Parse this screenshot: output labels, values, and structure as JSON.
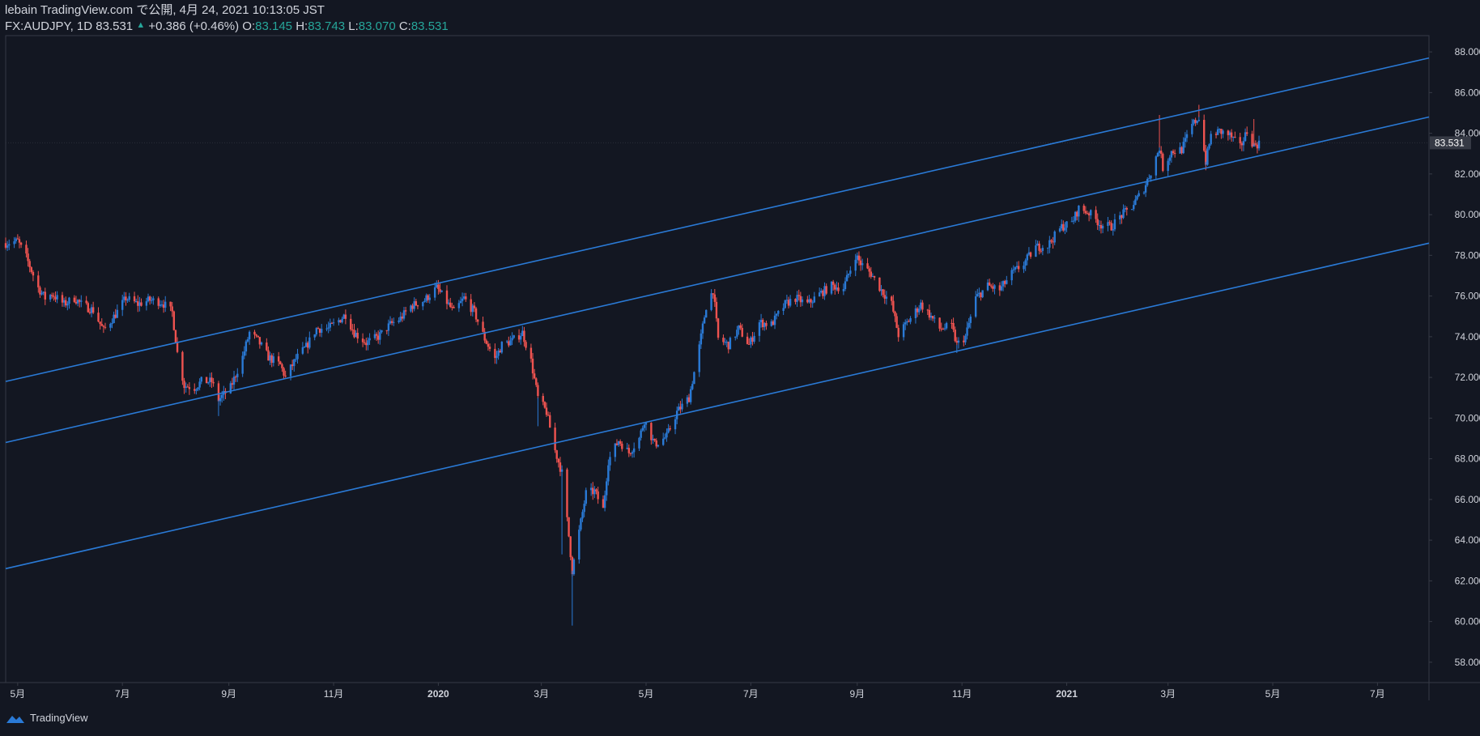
{
  "header": {
    "published": "lebain TradingView.com で公開, 4月 24, 2021 10:13:05 JST",
    "symbol": "FX:AUDJPY, 1D 83.531",
    "change": "+0.386 (+0.46%)",
    "o_label": "O:",
    "o": "83.145",
    "h_label": "H:",
    "h": "83.743",
    "l_label": "L:",
    "l": "83.070",
    "c_label": "C:",
    "c": "83.531"
  },
  "footer": {
    "brand": "TradingView",
    "icon": "tradingview-cloud-icon"
  },
  "colors": {
    "background": "#131722",
    "up": "#2a7ad6",
    "down": "#ef5350",
    "channel": "#2a7ad6",
    "axis_text": "#d1d4dc",
    "border": "#363a45",
    "price_label_bg": "#363a45",
    "ohlc_value": "#26a69a"
  },
  "chart_data": {
    "type": "candlestick",
    "symbol": "FX:AUDJPY",
    "timeframe": "1D",
    "x_range": [
      "2019-04-24",
      "2021-07-31"
    ],
    "ylim": [
      57,
      88.8
    ],
    "y_ticks": [
      58,
      60,
      62,
      64,
      66,
      68,
      70,
      72,
      74,
      76,
      78,
      80,
      82,
      84,
      86,
      88
    ],
    "y_tick_labels": [
      "58.000",
      "60.000",
      "62.000",
      "64.000",
      "66.000",
      "68.000",
      "70.000",
      "72.000",
      "74.000",
      "76.000",
      "78.000",
      "80.000",
      "82.000",
      "84.000",
      "86.000",
      "88.000"
    ],
    "x_ticks": [
      {
        "date": "2019-05-01",
        "label": "5月"
      },
      {
        "date": "2019-07-01",
        "label": "7月"
      },
      {
        "date": "2019-09-01",
        "label": "9月"
      },
      {
        "date": "2019-11-01",
        "label": "11月"
      },
      {
        "date": "2020-01-01",
        "label": "2020"
      },
      {
        "date": "2020-03-01",
        "label": "3月"
      },
      {
        "date": "2020-05-01",
        "label": "5月"
      },
      {
        "date": "2020-07-01",
        "label": "7月"
      },
      {
        "date": "2020-09-01",
        "label": "9月"
      },
      {
        "date": "2020-11-01",
        "label": "11月"
      },
      {
        "date": "2021-01-01",
        "label": "2021"
      },
      {
        "date": "2021-03-01",
        "label": "3月"
      },
      {
        "date": "2021-05-01",
        "label": "5月"
      },
      {
        "date": "2021-07-01",
        "label": "7月"
      }
    ],
    "last_price": 83.531,
    "last_price_label": "83.531",
    "price_path": [
      [
        "2019-04-24",
        78.6
      ],
      [
        "2019-05-01",
        78.7
      ],
      [
        "2019-05-06",
        77.9
      ],
      [
        "2019-05-13",
        76.4
      ],
      [
        "2019-05-17",
        75.9
      ],
      [
        "2019-05-21",
        76.1
      ],
      [
        "2019-05-28",
        75.6
      ],
      [
        "2019-06-03",
        75.9
      ],
      [
        "2019-06-07",
        75.6
      ],
      [
        "2019-06-14",
        75.3
      ],
      [
        "2019-06-20",
        74.3
      ],
      [
        "2019-06-27",
        75.1
      ],
      [
        "2019-07-03",
        75.9
      ],
      [
        "2019-07-10",
        75.6
      ],
      [
        "2019-07-17",
        75.8
      ],
      [
        "2019-07-24",
        75.7
      ],
      [
        "2019-07-30",
        75.2
      ],
      [
        "2019-08-02",
        73.2
      ],
      [
        "2019-08-06",
        71.6
      ],
      [
        "2019-08-12",
        71.5
      ],
      [
        "2019-08-16",
        71.8
      ],
      [
        "2019-08-22",
        71.8
      ],
      [
        "2019-08-26",
        70.9
      ],
      [
        "2019-09-02",
        71.5
      ],
      [
        "2019-09-09",
        73.0
      ],
      [
        "2019-09-13",
        74.2
      ],
      [
        "2019-09-18",
        73.8
      ],
      [
        "2019-09-24",
        73.0
      ],
      [
        "2019-10-01",
        72.6
      ],
      [
        "2019-10-04",
        72.0
      ],
      [
        "2019-10-10",
        72.9
      ],
      [
        "2019-10-16",
        73.5
      ],
      [
        "2019-10-22",
        74.4
      ],
      [
        "2019-10-29",
        74.4
      ],
      [
        "2019-11-04",
        74.8
      ],
      [
        "2019-11-08",
        75.1
      ],
      [
        "2019-11-13",
        74.2
      ],
      [
        "2019-11-20",
        73.7
      ],
      [
        "2019-11-27",
        74.0
      ],
      [
        "2019-12-04",
        74.6
      ],
      [
        "2019-12-10",
        74.9
      ],
      [
        "2019-12-16",
        75.5
      ],
      [
        "2019-12-24",
        75.8
      ],
      [
        "2019-12-31",
        76.4
      ],
      [
        "2020-01-06",
        75.7
      ],
      [
        "2020-01-10",
        75.2
      ],
      [
        "2020-01-16",
        75.9
      ],
      [
        "2020-01-22",
        75.2
      ],
      [
        "2020-01-28",
        73.9
      ],
      [
        "2020-02-03",
        72.9
      ],
      [
        "2020-02-07",
        73.6
      ],
      [
        "2020-02-13",
        73.8
      ],
      [
        "2020-02-19",
        74.2
      ],
      [
        "2020-02-24",
        72.8
      ],
      [
        "2020-02-28",
        71.0
      ],
      [
        "2020-03-04",
        70.3
      ],
      [
        "2020-03-09",
        68.4
      ],
      [
        "2020-03-13",
        67.3
      ],
      [
        "2020-03-17",
        64.2
      ],
      [
        "2020-03-19",
        62.5
      ],
      [
        "2020-03-24",
        64.9
      ],
      [
        "2020-03-27",
        66.3
      ],
      [
        "2020-04-01",
        66.4
      ],
      [
        "2020-04-06",
        65.5
      ],
      [
        "2020-04-09",
        67.9
      ],
      [
        "2020-04-15",
        68.9
      ],
      [
        "2020-04-21",
        68.3
      ],
      [
        "2020-04-27",
        69.0
      ],
      [
        "2020-04-30",
        69.9
      ],
      [
        "2020-05-06",
        68.7
      ],
      [
        "2020-05-13",
        69.1
      ],
      [
        "2020-05-19",
        70.3
      ],
      [
        "2020-05-26",
        71.0
      ],
      [
        "2020-06-01",
        73.5
      ],
      [
        "2020-06-05",
        75.5
      ],
      [
        "2020-06-09",
        76.3
      ],
      [
        "2020-06-12",
        73.9
      ],
      [
        "2020-06-18",
        73.6
      ],
      [
        "2020-06-24",
        74.4
      ],
      [
        "2020-06-30",
        73.6
      ],
      [
        "2020-07-06",
        74.7
      ],
      [
        "2020-07-13",
        74.6
      ],
      [
        "2020-07-21",
        75.6
      ],
      [
        "2020-07-27",
        75.9
      ],
      [
        "2020-08-03",
        75.6
      ],
      [
        "2020-08-10",
        76.1
      ],
      [
        "2020-08-17",
        76.5
      ],
      [
        "2020-08-24",
        76.4
      ],
      [
        "2020-08-31",
        78.0
      ],
      [
        "2020-09-03",
        77.6
      ],
      [
        "2020-09-09",
        77.1
      ],
      [
        "2020-09-15",
        76.3
      ],
      [
        "2020-09-21",
        75.6
      ],
      [
        "2020-09-25",
        74.1
      ],
      [
        "2020-10-01",
        74.8
      ],
      [
        "2020-10-08",
        75.6
      ],
      [
        "2020-10-13",
        75.1
      ],
      [
        "2020-10-19",
        74.4
      ],
      [
        "2020-10-26",
        74.5
      ],
      [
        "2020-10-29",
        73.6
      ],
      [
        "2020-11-03",
        74.0
      ],
      [
        "2020-11-09",
        75.9
      ],
      [
        "2020-11-16",
        76.5
      ],
      [
        "2020-11-23",
        76.3
      ],
      [
        "2020-11-30",
        77.1
      ],
      [
        "2020-12-07",
        77.6
      ],
      [
        "2020-12-14",
        78.4
      ],
      [
        "2020-12-21",
        78.5
      ],
      [
        "2020-12-29",
        79.4
      ],
      [
        "2021-01-04",
        79.6
      ],
      [
        "2021-01-08",
        80.3
      ],
      [
        "2021-01-14",
        80.1
      ],
      [
        "2021-01-21",
        79.5
      ],
      [
        "2021-01-27",
        79.4
      ],
      [
        "2021-02-01",
        79.9
      ],
      [
        "2021-02-08",
        80.4
      ],
      [
        "2021-02-15",
        81.3
      ],
      [
        "2021-02-19",
        82.1
      ],
      [
        "2021-02-24",
        83.3
      ],
      [
        "2021-02-26",
        82.3
      ],
      [
        "2021-03-03",
        83.1
      ],
      [
        "2021-03-09",
        83.2
      ],
      [
        "2021-03-15",
        84.4
      ],
      [
        "2021-03-19",
        84.8
      ],
      [
        "2021-03-23",
        82.6
      ],
      [
        "2021-03-26",
        83.9
      ],
      [
        "2021-03-31",
        84.1
      ],
      [
        "2021-04-06",
        83.9
      ],
      [
        "2021-04-12",
        83.3
      ],
      [
        "2021-04-16",
        84.1
      ],
      [
        "2021-04-20",
        83.4
      ],
      [
        "2021-04-24",
        83.531
      ]
    ],
    "spikes": [
      [
        "2019-08-26",
        70.1,
        "low"
      ],
      [
        "2020-03-19",
        59.8,
        "low"
      ],
      [
        "2020-03-13",
        63.3,
        "low"
      ],
      [
        "2020-02-28",
        69.6,
        "low"
      ],
      [
        "2020-10-29",
        73.2,
        "low"
      ],
      [
        "2021-02-24",
        84.9,
        "high"
      ],
      [
        "2021-03-19",
        85.4,
        "high"
      ],
      [
        "2021-03-23",
        82.4,
        "low"
      ],
      [
        "2021-04-20",
        84.7,
        "high"
      ]
    ],
    "channel_lines": [
      {
        "from": [
          "2019-04-24",
          71.8
        ],
        "to": [
          "2021-07-31",
          87.7
        ]
      },
      {
        "from": [
          "2019-04-24",
          68.8
        ],
        "to": [
          "2021-07-31",
          84.8
        ]
      },
      {
        "from": [
          "2019-04-24",
          62.6
        ],
        "to": [
          "2021-07-31",
          78.6
        ]
      }
    ]
  }
}
